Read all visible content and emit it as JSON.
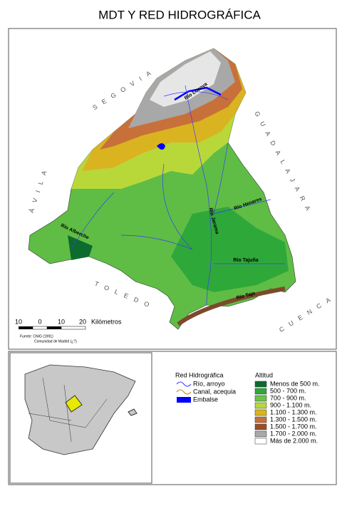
{
  "title": "MDT Y RED HIDROGRÁFICA",
  "map": {
    "provinces": [
      "SEGOVIA",
      "GUADALAJARA",
      "ÁVILA",
      "TOLEDO",
      "CUENCA"
    ],
    "rivers": [
      "Río Lozoya",
      "Río Henares",
      "Río Jarama",
      "Río Alberche",
      "Río Tajuña",
      "Río Tajo"
    ]
  },
  "scale": {
    "labels": [
      10,
      0,
      10,
      20
    ],
    "unit": "Kilómetros"
  },
  "source": [
    "Fuente: CNIG (1991)",
    "Comunidad de Madrid (¿?)"
  ],
  "hydro_legend": {
    "title": "Red Hidrográfica",
    "items": [
      "Río, arroyo",
      "Canal, acequia",
      "Embalse"
    ]
  },
  "altitude_legend": {
    "title": "Altitud",
    "items": [
      {
        "label": "Menos de 500 m.",
        "color": "#0e6b2e"
      },
      {
        "label": "500 - 700 m.",
        "color": "#2fa83a"
      },
      {
        "label": "700 - 900 m.",
        "color": "#6cc24a"
      },
      {
        "label": "900 - 1.100 m.",
        "color": "#b8d83a"
      },
      {
        "label": "1.100 - 1.300 m.",
        "color": "#d9b420"
      },
      {
        "label": "1.300 - 1.500 m.",
        "color": "#c8703a"
      },
      {
        "label": "1.500 - 1.700 m.",
        "color": "#9a4e2a"
      },
      {
        "label": "1.700 - 2.000 m.",
        "color": "#a8a8a8"
      },
      {
        "label": "Más de 2.000 m.",
        "color": "#ffffff"
      }
    ]
  }
}
